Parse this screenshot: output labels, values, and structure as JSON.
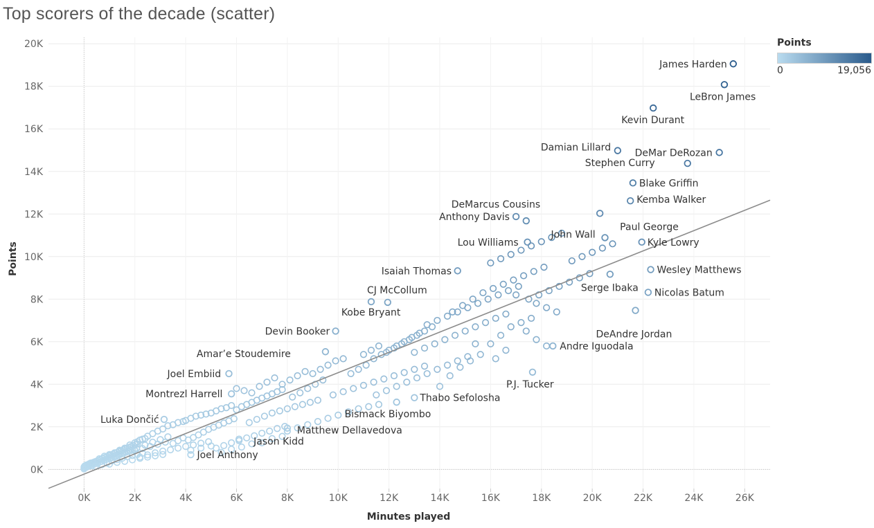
{
  "title": "Top scorers of the decade (scatter)",
  "legend": {
    "title": "Points",
    "min_label": "0",
    "max_label": "19,056",
    "color_low": "#b9dbef",
    "color_high": "#2a5b8c"
  },
  "chart_data": {
    "type": "scatter",
    "title": "Top scorers of the decade (scatter)",
    "xlabel": "Minutes played",
    "ylabel": "Points",
    "xlim": [
      -1400,
      27000
    ],
    "ylim": [
      -900,
      20300
    ],
    "x_ticks": [
      0,
      2000,
      4000,
      6000,
      8000,
      10000,
      12000,
      14000,
      16000,
      18000,
      20000,
      22000,
      24000,
      26000
    ],
    "x_tick_labels": [
      "0K",
      "2K",
      "4K",
      "6K",
      "8K",
      "10K",
      "12K",
      "14K",
      "16K",
      "18K",
      "20K",
      "22K",
      "24K",
      "26K"
    ],
    "y_ticks": [
      0,
      2000,
      4000,
      6000,
      8000,
      10000,
      12000,
      14000,
      16000,
      18000,
      20000
    ],
    "y_tick_labels": [
      "0K",
      "2K",
      "4K",
      "6K",
      "8K",
      "10K",
      "12K",
      "14K",
      "16K",
      "18K",
      "20K"
    ],
    "grid": true,
    "legend_position": "top-right",
    "color_scale": {
      "field": "Points",
      "min": 0,
      "max": 19056,
      "low": "#b9dbef",
      "high": "#2a5b8c"
    },
    "trend_line": {
      "points": [
        [
          -1400,
          -890
        ],
        [
          27000,
          12650
        ]
      ],
      "color": "#8c8c8c"
    },
    "labeled_points": [
      {
        "name": "James Harden",
        "x": 25550,
        "y": 19056
      },
      {
        "name": "LeBron James",
        "x": 25200,
        "y": 18080
      },
      {
        "name": "Kevin Durant",
        "x": 22400,
        "y": 16980
      },
      {
        "name": "DeMar DeRozan",
        "x": 25000,
        "y": 14890
      },
      {
        "name": "Stephen Curry",
        "x": 23750,
        "y": 14380
      },
      {
        "name": "Damian Lillard",
        "x": 21000,
        "y": 14980
      },
      {
        "name": "Blake Griffin",
        "x": 21600,
        "y": 13460
      },
      {
        "name": "Kemba Walker",
        "x": 21500,
        "y": 12620
      },
      {
        "name": "Paul George",
        "x": 20300,
        "y": 12030
      },
      {
        "name": "DeMarcus Cousins",
        "x": 17400,
        "y": 11680
      },
      {
        "name": "Anthony Davis",
        "x": 17000,
        "y": 11880
      },
      {
        "name": "Lou Williams",
        "x": 17450,
        "y": 10680
      },
      {
        "name": "John Wall",
        "x": 20500,
        "y": 10890
      },
      {
        "name": "Kyle Lowry",
        "x": 21950,
        "y": 10680
      },
      {
        "name": "Wesley Matthews",
        "x": 22300,
        "y": 9390
      },
      {
        "name": "Isaiah Thomas",
        "x": 14700,
        "y": 9330
      },
      {
        "name": "Serge Ibaka",
        "x": 20700,
        "y": 9170
      },
      {
        "name": "Nicolas Batum",
        "x": 22200,
        "y": 8320
      },
      {
        "name": "CJ McCollum",
        "x": 11300,
        "y": 7880
      },
      {
        "name": "Kobe Bryant",
        "x": 11950,
        "y": 7850
      },
      {
        "name": "DeAndre Jordan",
        "x": 21700,
        "y": 7470
      },
      {
        "name": "Devin Booker",
        "x": 9900,
        "y": 6500
      },
      {
        "name": "Andre Iguodala",
        "x": 18450,
        "y": 5800
      },
      {
        "name": "Amar’e Stoudemire",
        "x": 9500,
        "y": 5530
      },
      {
        "name": "P.J. Tucker",
        "x": 17650,
        "y": 4570
      },
      {
        "name": "Joel Embiid",
        "x": 5700,
        "y": 4500
      },
      {
        "name": "Thabo Sefolosha",
        "x": 13000,
        "y": 3370
      },
      {
        "name": "Montrezl Harrell",
        "x": 5800,
        "y": 3550
      },
      {
        "name": "Bismack Biyombo",
        "x": 12300,
        "y": 3160
      },
      {
        "name": "Luka Dončić",
        "x": 3150,
        "y": 2350
      },
      {
        "name": "Matthew Dellavedova",
        "x": 8000,
        "y": 1940
      },
      {
        "name": "Jason Kidd",
        "x": 6100,
        "y": 1420
      },
      {
        "name": "Joel Anthony",
        "x": 4200,
        "y": 690
      }
    ],
    "other_points": [
      [
        0,
        60
      ],
      [
        0,
        20
      ],
      [
        0,
        110
      ],
      [
        20,
        150
      ],
      [
        50,
        180
      ],
      [
        80,
        90
      ],
      [
        100,
        210
      ],
      [
        120,
        180
      ],
      [
        150,
        130
      ],
      [
        180,
        220
      ],
      [
        200,
        260
      ],
      [
        230,
        200
      ],
      [
        260,
        300
      ],
      [
        300,
        170
      ],
      [
        330,
        280
      ],
      [
        360,
        330
      ],
      [
        400,
        240
      ],
      [
        430,
        360
      ],
      [
        470,
        310
      ],
      [
        500,
        390
      ],
      [
        540,
        280
      ],
      [
        580,
        420
      ],
      [
        620,
        350
      ],
      [
        660,
        470
      ],
      [
        700,
        380
      ],
      [
        740,
        520
      ],
      [
        780,
        430
      ],
      [
        820,
        560
      ],
      [
        860,
        460
      ],
      [
        900,
        600
      ],
      [
        940,
        490
      ],
      [
        980,
        640
      ],
      [
        1020,
        530
      ],
      [
        1060,
        680
      ],
      [
        1100,
        560
      ],
      [
        1140,
        720
      ],
      [
        1180,
        600
      ],
      [
        1220,
        760
      ],
      [
        1260,
        630
      ],
      [
        1300,
        800
      ],
      [
        1340,
        670
      ],
      [
        1380,
        840
      ],
      [
        1420,
        700
      ],
      [
        1460,
        880
      ],
      [
        1500,
        740
      ],
      [
        1540,
        920
      ],
      [
        1580,
        780
      ],
      [
        1620,
        960
      ],
      [
        1660,
        810
      ],
      [
        1700,
        1000
      ],
      [
        1740,
        850
      ],
      [
        1780,
        1040
      ],
      [
        1820,
        880
      ],
      [
        1860,
        1080
      ],
      [
        1900,
        910
      ],
      [
        1940,
        1120
      ],
      [
        1980,
        950
      ],
      [
        2020,
        1160
      ],
      [
        2060,
        980
      ],
      [
        2100,
        1200
      ],
      [
        450,
        150
      ],
      [
        700,
        220
      ],
      [
        900,
        300
      ],
      [
        1100,
        400
      ],
      [
        1300,
        460
      ],
      [
        1500,
        520
      ],
      [
        1700,
        600
      ],
      [
        1900,
        650
      ],
      [
        2100,
        700
      ],
      [
        2300,
        760
      ],
      [
        600,
        500
      ],
      [
        800,
        620
      ],
      [
        1000,
        700
      ],
      [
        1200,
        780
      ],
      [
        1400,
        900
      ],
      [
        1600,
        1000
      ],
      [
        1800,
        1150
      ],
      [
        2000,
        1250
      ],
      [
        2200,
        1380
      ],
      [
        2400,
        1450
      ],
      [
        1000,
        250
      ],
      [
        1300,
        330
      ],
      [
        1600,
        380
      ],
      [
        1900,
        450
      ],
      [
        2200,
        520
      ],
      [
        2500,
        580
      ],
      [
        2800,
        640
      ],
      [
        3100,
        700
      ],
      [
        2000,
        880
      ],
      [
        2300,
        980
      ],
      [
        2600,
        1080
      ],
      [
        2900,
        1180
      ],
      [
        3200,
        1280
      ],
      [
        2400,
        1140
      ],
      [
        2700,
        1280
      ],
      [
        3000,
        1400
      ],
      [
        3300,
        1530
      ],
      [
        3500,
        1220
      ],
      [
        3700,
        1350
      ],
      [
        3900,
        1480
      ],
      [
        2100,
        1300
      ],
      [
        2300,
        1420
      ],
      [
        2500,
        1560
      ],
      [
        2700,
        1680
      ],
      [
        2900,
        1800
      ],
      [
        3100,
        1900
      ],
      [
        3300,
        2050
      ],
      [
        3500,
        2100
      ],
      [
        3700,
        2200
      ],
      [
        3900,
        2250
      ],
      [
        4100,
        1380
      ],
      [
        4300,
        1500
      ],
      [
        4500,
        1620
      ],
      [
        4700,
        1750
      ],
      [
        4900,
        1880
      ],
      [
        5100,
        1980
      ],
      [
        5300,
        2080
      ],
      [
        5500,
        2180
      ],
      [
        5700,
        2280
      ],
      [
        5900,
        2380
      ],
      [
        2200,
        580
      ],
      [
        2500,
        680
      ],
      [
        2800,
        780
      ],
      [
        3100,
        860
      ],
      [
        3400,
        920
      ],
      [
        3700,
        1000
      ],
      [
        4000,
        1080
      ],
      [
        4300,
        1150
      ],
      [
        4600,
        1230
      ],
      [
        4900,
        1300
      ],
      [
        5200,
        1000
      ],
      [
        5500,
        1120
      ],
      [
        5800,
        1250
      ],
      [
        6100,
        1350
      ],
      [
        6400,
        1480
      ],
      [
        6700,
        1580
      ],
      [
        7000,
        1700
      ],
      [
        7300,
        1800
      ],
      [
        7600,
        1920
      ],
      [
        7900,
        2020
      ],
      [
        4000,
        2300
      ],
      [
        4200,
        2400
      ],
      [
        4400,
        2500
      ],
      [
        4600,
        2550
      ],
      [
        4800,
        2600
      ],
      [
        5000,
        2650
      ],
      [
        5200,
        2750
      ],
      [
        5400,
        2850
      ],
      [
        5600,
        2900
      ],
      [
        5800,
        3000
      ],
      [
        6000,
        2800
      ],
      [
        6200,
        2950
      ],
      [
        6400,
        3050
      ],
      [
        6600,
        3150
      ],
      [
        6800,
        3250
      ],
      [
        7000,
        3350
      ],
      [
        7200,
        3450
      ],
      [
        7400,
        3550
      ],
      [
        7600,
        3650
      ],
      [
        7800,
        3750
      ],
      [
        4200,
        900
      ],
      [
        4600,
        1000
      ],
      [
        5000,
        1100
      ],
      [
        5400,
        800
      ],
      [
        5800,
        950
      ],
      [
        6200,
        1050
      ],
      [
        6600,
        1200
      ],
      [
        7000,
        1250
      ],
      [
        7400,
        1450
      ],
      [
        7800,
        1550
      ],
      [
        6500,
        2200
      ],
      [
        6800,
        2350
      ],
      [
        7100,
        2500
      ],
      [
        7400,
        2650
      ],
      [
        7700,
        2750
      ],
      [
        8000,
        2850
      ],
      [
        8300,
        2950
      ],
      [
        8600,
        3050
      ],
      [
        8900,
        3150
      ],
      [
        9200,
        3250
      ],
      [
        6000,
        3800
      ],
      [
        6300,
        3700
      ],
      [
        6600,
        3600
      ],
      [
        6900,
        3900
      ],
      [
        7200,
        4100
      ],
      [
        7500,
        4300
      ],
      [
        7800,
        4000
      ],
      [
        8100,
        4200
      ],
      [
        8400,
        4400
      ],
      [
        8700,
        4600
      ],
      [
        9000,
        4500
      ],
      [
        9300,
        4700
      ],
      [
        9600,
        4900
      ],
      [
        9900,
        5100
      ],
      [
        10200,
        5200
      ],
      [
        8200,
        3400
      ],
      [
        8500,
        3600
      ],
      [
        8800,
        3800
      ],
      [
        9100,
        4000
      ],
      [
        9400,
        4200
      ],
      [
        8000,
        1800
      ],
      [
        8400,
        1950
      ],
      [
        8800,
        2100
      ],
      [
        9200,
        2250
      ],
      [
        9600,
        2400
      ],
      [
        10000,
        2550
      ],
      [
        10400,
        2700
      ],
      [
        10800,
        2850
      ],
      [
        11200,
        2950
      ],
      [
        11600,
        3050
      ],
      [
        9800,
        3500
      ],
      [
        10200,
        3650
      ],
      [
        10600,
        3800
      ],
      [
        11000,
        3950
      ],
      [
        11400,
        4100
      ],
      [
        11800,
        4250
      ],
      [
        12200,
        4400
      ],
      [
        12600,
        4550
      ],
      [
        13000,
        4700
      ],
      [
        13400,
        4850
      ],
      [
        10500,
        4500
      ],
      [
        10800,
        4700
      ],
      [
        11100,
        4900
      ],
      [
        11400,
        5200
      ],
      [
        11700,
        5400
      ],
      [
        12000,
        5600
      ],
      [
        12300,
        5800
      ],
      [
        12600,
        6000
      ],
      [
        12900,
        6200
      ],
      [
        13200,
        6400
      ],
      [
        11000,
        5400
      ],
      [
        11300,
        5600
      ],
      [
        11600,
        5800
      ],
      [
        11900,
        5500
      ],
      [
        12200,
        5700
      ],
      [
        12500,
        5900
      ],
      [
        12800,
        6100
      ],
      [
        13100,
        6300
      ],
      [
        13400,
        6500
      ],
      [
        13700,
        6700
      ],
      [
        11500,
        3500
      ],
      [
        11900,
        3700
      ],
      [
        12300,
        3900
      ],
      [
        12700,
        4100
      ],
      [
        13100,
        4300
      ],
      [
        13500,
        4500
      ],
      [
        13900,
        4700
      ],
      [
        14300,
        4900
      ],
      [
        14700,
        5100
      ],
      [
        15100,
        5300
      ],
      [
        13000,
        5500
      ],
      [
        13400,
        5700
      ],
      [
        13800,
        5900
      ],
      [
        14200,
        6100
      ],
      [
        14600,
        6300
      ],
      [
        15000,
        6500
      ],
      [
        15400,
        6700
      ],
      [
        15800,
        6900
      ],
      [
        16200,
        7100
      ],
      [
        16600,
        7300
      ],
      [
        14000,
        3900
      ],
      [
        14400,
        4400
      ],
      [
        14800,
        4800
      ],
      [
        15200,
        5100
      ],
      [
        15600,
        5400
      ],
      [
        16000,
        5900
      ],
      [
        16400,
        6300
      ],
      [
        16800,
        6700
      ],
      [
        17200,
        6900
      ],
      [
        17600,
        7100
      ],
      [
        14500,
        7400
      ],
      [
        14900,
        7700
      ],
      [
        15300,
        8000
      ],
      [
        15700,
        8300
      ],
      [
        16100,
        8500
      ],
      [
        16500,
        8700
      ],
      [
        16900,
        8900
      ],
      [
        17300,
        9100
      ],
      [
        17700,
        9300
      ],
      [
        18100,
        9500
      ],
      [
        13500,
        6800
      ],
      [
        13900,
        7000
      ],
      [
        14300,
        7200
      ],
      [
        14700,
        7400
      ],
      [
        15100,
        7600
      ],
      [
        15500,
        7800
      ],
      [
        15900,
        8000
      ],
      [
        16300,
        8200
      ],
      [
        16700,
        8400
      ],
      [
        17100,
        8600
      ],
      [
        17500,
        8000
      ],
      [
        17900,
        8200
      ],
      [
        18300,
        8400
      ],
      [
        18700,
        8600
      ],
      [
        19100,
        8800
      ],
      [
        19500,
        9000
      ],
      [
        19900,
        9200
      ],
      [
        17800,
        7800
      ],
      [
        18200,
        7600
      ],
      [
        18600,
        7400
      ],
      [
        16000,
        9700
      ],
      [
        16400,
        9900
      ],
      [
        16800,
        10100
      ],
      [
        17200,
        10300
      ],
      [
        17600,
        10500
      ],
      [
        18000,
        10700
      ],
      [
        18400,
        10900
      ],
      [
        18800,
        11100
      ],
      [
        19200,
        9800
      ],
      [
        19600,
        10000
      ],
      [
        20000,
        10200
      ],
      [
        20400,
        10400
      ],
      [
        20800,
        10600
      ],
      [
        17000,
        8200
      ],
      [
        17400,
        6500
      ],
      [
        17800,
        6100
      ],
      [
        18200,
        5800
      ],
      [
        16600,
        5600
      ],
      [
        16200,
        5200
      ],
      [
        15400,
        5900
      ]
    ]
  }
}
